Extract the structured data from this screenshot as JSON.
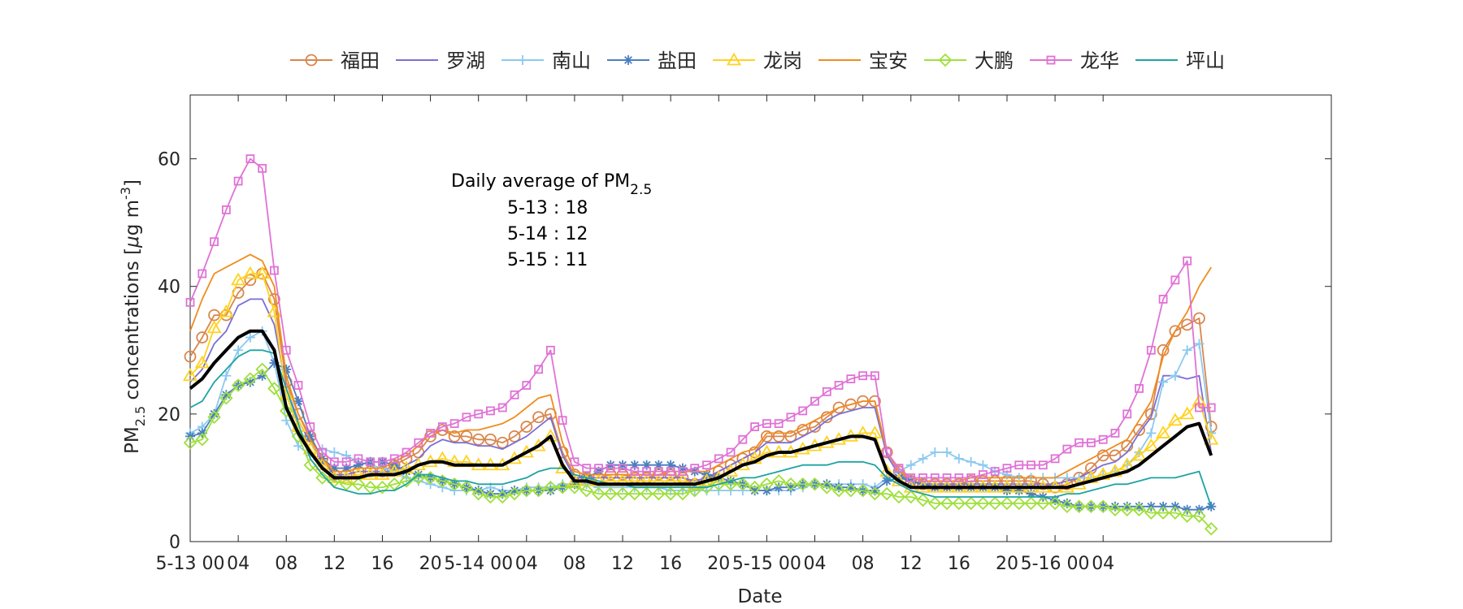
{
  "chart_data": {
    "type": "line",
    "xlabel": "Date",
    "ylabel": "PM2.5 concentrations [μg m-3]",
    "ylabel_parts": {
      "a": "PM",
      "sub": "2.5",
      "b": " concentrations [",
      "mu": "μ",
      "c": "g m",
      "sup": "-3",
      "d": "]"
    },
    "ylim": [
      0,
      70
    ],
    "xlim": [
      0,
      95
    ],
    "yticks": [
      0,
      20,
      40,
      60
    ],
    "xticks": [
      {
        "x": 0,
        "label": "5-13 00"
      },
      {
        "x": 4,
        "label": "04"
      },
      {
        "x": 8,
        "label": "08"
      },
      {
        "x": 12,
        "label": "12"
      },
      {
        "x": 16,
        "label": "16"
      },
      {
        "x": 20,
        "label": "20"
      },
      {
        "x": 24,
        "label": "5-14 00"
      },
      {
        "x": 28,
        "label": "04"
      },
      {
        "x": 32,
        "label": "08"
      },
      {
        "x": 36,
        "label": "12"
      },
      {
        "x": 40,
        "label": "16"
      },
      {
        "x": 44,
        "label": "20"
      },
      {
        "x": 48,
        "label": "5-15 00"
      },
      {
        "x": 52,
        "label": "04"
      },
      {
        "x": 56,
        "label": "08"
      },
      {
        "x": 60,
        "label": "12"
      },
      {
        "x": 64,
        "label": "16"
      },
      {
        "x": 68,
        "label": "20"
      },
      {
        "x": 72,
        "label": "5-16 00"
      },
      {
        "x": 76,
        "label": "04"
      }
    ],
    "annotation": {
      "title_main": "Daily average of PM",
      "title_sub": "2.5",
      "lines": [
        "5-13 : 18",
        "5-14 : 12",
        "5-15 : 11"
      ]
    },
    "legend_position": "top",
    "series": [
      {
        "name": "福田",
        "color": "#d9864c",
        "marker": "circle",
        "values": [
          29,
          32,
          35.5,
          35.5,
          39,
          41,
          42,
          38,
          25,
          20,
          16.5,
          13,
          10.5,
          10.5,
          11,
          11,
          11,
          12,
          13,
          14,
          16.5,
          17.5,
          16.5,
          16.5,
          16,
          16,
          15.5,
          16.5,
          18,
          19.5,
          20,
          14,
          10.5,
          10,
          10,
          10.5,
          10.5,
          10,
          10,
          10.5,
          10.5,
          10,
          9,
          9.5,
          11,
          12,
          13,
          14,
          16.5,
          16.5,
          16.5,
          17.5,
          18,
          19.5,
          21,
          21.5,
          22,
          22,
          14,
          11,
          9.5,
          9,
          9,
          9,
          9,
          9.5,
          9.5,
          9.5,
          9.5,
          9.5,
          9.5,
          9,
          8.5,
          9,
          10,
          11.5,
          13.5,
          13.5,
          15,
          17.5,
          20,
          30,
          33,
          34,
          35,
          18
        ]
      },
      {
        "name": "罗湖",
        "color": "#7b6fd6",
        "marker": "none",
        "values": [
          25,
          27,
          31,
          33,
          37,
          38,
          38,
          34,
          24,
          19,
          15.5,
          12.5,
          10.5,
          10.5,
          11,
          11,
          11,
          11,
          12,
          13,
          15,
          16,
          15.5,
          15.5,
          15,
          15,
          14.5,
          15.5,
          16.5,
          18,
          19.5,
          13.5,
          10,
          10,
          10,
          10,
          10,
          10,
          10,
          10,
          10,
          10,
          9.5,
          10,
          11,
          12,
          13,
          14,
          15.5,
          15.5,
          15.5,
          16.5,
          17.5,
          19,
          20,
          20.5,
          21,
          21,
          13.5,
          10.5,
          9.5,
          9,
          9,
          9,
          9,
          9,
          9,
          9,
          9,
          9,
          9,
          9,
          9,
          9.5,
          10,
          11,
          12,
          12.5,
          14,
          17,
          19.5,
          26,
          26,
          25.5,
          26,
          14
        ]
      },
      {
        "name": "南山",
        "color": "#8cc9f0",
        "marker": "plus",
        "values": [
          17,
          18,
          20,
          26,
          30,
          32,
          33,
          28,
          19,
          15,
          13.5,
          14.5,
          14,
          13.5,
          12.5,
          12,
          11.5,
          11,
          10,
          9.5,
          9,
          8.5,
          8,
          8,
          8,
          8.5,
          8,
          8,
          8.5,
          8.5,
          8.5,
          9,
          9,
          9,
          8.5,
          8.5,
          8.5,
          8.5,
          8.5,
          8.5,
          8,
          8,
          8,
          8,
          8,
          8,
          8,
          8,
          8,
          8,
          8,
          8.5,
          9,
          9,
          9,
          9,
          9,
          8.5,
          10,
          11,
          12,
          13,
          14,
          14,
          13,
          12.5,
          12,
          11,
          10.5,
          10,
          10,
          10,
          10,
          10,
          10,
          10,
          10.5,
          11,
          12,
          14,
          17,
          25,
          26,
          30,
          31,
          17
        ]
      },
      {
        "name": "盐田",
        "color": "#4a7fbf",
        "marker": "asterisk",
        "values": [
          16.5,
          17,
          20,
          23,
          24.5,
          25,
          26,
          28,
          27,
          22,
          16.5,
          13,
          11.5,
          11.5,
          12,
          12.5,
          12.5,
          12,
          11,
          10.5,
          10,
          9.5,
          9,
          8.5,
          8,
          7.5,
          7.5,
          8,
          8,
          8,
          8,
          8.5,
          9,
          10,
          11,
          12,
          12,
          12,
          12,
          12,
          12,
          11.5,
          11,
          10.5,
          10,
          9.5,
          9,
          8,
          8,
          8.5,
          8.5,
          9,
          9,
          9,
          8.5,
          8.5,
          8,
          8,
          9.5,
          10,
          9.5,
          9,
          8.5,
          8.5,
          8.5,
          8.5,
          8.5,
          8.5,
          8,
          8,
          7.5,
          7,
          6.5,
          6,
          5.5,
          5.5,
          5.5,
          5.5,
          5.5,
          5.5,
          5.5,
          5.5,
          5.5,
          5,
          5,
          5.5
        ]
      },
      {
        "name": "龙岗",
        "color": "#ffd21f",
        "marker": "triangle",
        "values": [
          26,
          28,
          33.5,
          36,
          41,
          42,
          42,
          36,
          23,
          18,
          14.5,
          12,
          10,
          10,
          10.5,
          10.5,
          10.5,
          11,
          11.5,
          12,
          12.5,
          13,
          12.5,
          12.5,
          12,
          12,
          12,
          13,
          14,
          15,
          16.5,
          11.5,
          9.5,
          9.5,
          9.5,
          9.5,
          9.5,
          9.5,
          9.5,
          9.5,
          9.5,
          9.5,
          9,
          9.5,
          10,
          11,
          12,
          13,
          14,
          14,
          14,
          14.5,
          15,
          15.5,
          16,
          16.5,
          17,
          17,
          11,
          9.5,
          8.5,
          8.5,
          8.5,
          8.5,
          8.5,
          8.5,
          8.5,
          8.5,
          8.5,
          8.5,
          8.5,
          8.5,
          8.5,
          8.5,
          9,
          10,
          10.5,
          11,
          12,
          13.5,
          15,
          17,
          19,
          20,
          22,
          16
        ]
      },
      {
        "name": "宝安",
        "color": "#f08c1e",
        "marker": "none",
        "values": [
          33,
          38,
          42,
          43,
          44,
          45,
          44,
          40,
          26,
          20,
          16,
          13,
          11,
          11,
          11.5,
          11.5,
          11.5,
          12.5,
          13.5,
          15,
          17,
          17.5,
          17,
          17.5,
          17.5,
          18,
          18.5,
          19.5,
          21,
          22.5,
          23,
          15.5,
          11,
          10.5,
          10.5,
          10.5,
          10.5,
          10.5,
          10.5,
          10.5,
          11,
          11,
          11,
          11,
          12,
          13,
          14,
          14.5,
          17,
          17,
          17,
          18,
          19,
          20,
          21,
          21.5,
          22,
          22,
          14,
          11,
          10,
          9.5,
          9.5,
          9.5,
          9.5,
          10,
          10,
          10,
          10,
          10,
          10,
          10,
          10,
          11,
          12,
          13,
          14,
          15,
          16,
          19,
          22,
          29,
          33,
          36,
          40,
          43
        ]
      },
      {
        "name": "大鹏",
        "color": "#9ee03a",
        "marker": "diamond",
        "values": [
          15.5,
          16,
          19.5,
          22.5,
          24.5,
          25.5,
          27,
          24,
          20.5,
          16.5,
          12,
          10,
          9.5,
          9,
          9,
          8.5,
          8.5,
          9,
          9.5,
          10,
          10,
          9.5,
          9,
          8.5,
          7.5,
          7,
          7,
          7.5,
          8,
          8,
          8.5,
          8.5,
          8.5,
          8,
          7.5,
          7.5,
          7.5,
          7.5,
          7.5,
          7.5,
          7.5,
          7.5,
          8,
          8.5,
          9,
          9,
          9,
          8.5,
          9,
          9.5,
          9,
          9,
          9,
          8.5,
          8,
          8,
          8,
          7.5,
          7.5,
          7,
          7,
          6.5,
          6,
          6,
          6,
          6,
          6,
          6,
          6,
          6,
          6,
          6,
          6,
          5.5,
          5.5,
          5.5,
          5.5,
          5,
          5,
          5,
          4.5,
          4.5,
          4.5,
          4,
          4,
          2
        ]
      },
      {
        "name": "龙华",
        "color": "#e072d6",
        "marker": "square",
        "values": [
          37.5,
          42,
          47,
          52,
          56.5,
          60,
          58.5,
          42.5,
          30,
          24.5,
          18,
          14,
          12.5,
          12.5,
          13,
          12.5,
          12.5,
          13,
          14,
          15.5,
          17,
          18,
          18.5,
          19.5,
          20,
          20.5,
          21,
          23,
          24.5,
          27,
          30,
          19,
          12.5,
          11.5,
          11.5,
          11.5,
          11.5,
          11,
          11,
          11,
          11,
          11,
          11.5,
          12,
          13,
          14,
          16,
          18,
          18.5,
          18.5,
          19.5,
          20.5,
          22,
          23.5,
          24.5,
          25.5,
          26,
          26,
          14,
          11.5,
          10,
          10,
          10,
          10,
          10,
          10,
          10.5,
          11,
          11.5,
          12,
          12,
          12,
          13,
          14.5,
          15.5,
          15.5,
          16,
          17,
          20,
          24,
          30,
          38,
          41,
          44,
          21,
          21
        ]
      },
      {
        "name": "坪山",
        "color": "#1fa3a3",
        "marker": "none",
        "values": [
          21,
          22,
          25,
          27,
          29,
          30,
          30,
          29.5,
          24,
          18.5,
          13,
          10.5,
          8.5,
          8,
          7.5,
          7.5,
          8,
          8,
          9,
          10.5,
          10.5,
          10,
          9.5,
          9.5,
          9,
          9,
          9,
          9.5,
          10,
          11,
          11.5,
          11.5,
          10.5,
          10,
          9.5,
          9,
          9,
          8.5,
          8.5,
          8.5,
          8.5,
          8.5,
          8.5,
          8.5,
          9,
          9.5,
          10,
          10,
          10.5,
          11,
          11.5,
          12,
          12,
          12,
          12.5,
          12.5,
          12.5,
          12,
          10,
          9,
          8,
          7.5,
          7,
          7,
          7,
          7,
          7,
          7,
          7,
          7,
          7,
          7,
          7,
          7.5,
          7.5,
          8,
          8.5,
          9,
          9,
          9.5,
          10,
          10,
          10,
          10.5,
          11,
          5.5
        ]
      },
      {
        "name": "",
        "color": "#000000",
        "marker": "none",
        "bold": true,
        "values": [
          24,
          25.5,
          28,
          30,
          32,
          33,
          33,
          30,
          21,
          17,
          14,
          11.5,
          10,
          10,
          10,
          10.5,
          10.5,
          10.5,
          11,
          12,
          12.5,
          12.5,
          12,
          12,
          12,
          12,
          12,
          13,
          14,
          15,
          16.5,
          12,
          9.5,
          9.5,
          9,
          9,
          9,
          9,
          9,
          9,
          9,
          9,
          9,
          9.5,
          10,
          11,
          12,
          12.5,
          13.5,
          14,
          14,
          14.5,
          15,
          15.5,
          16,
          16.5,
          16.5,
          16,
          11,
          9.5,
          8.5,
          8.5,
          8.5,
          8.5,
          8.5,
          8.5,
          8.5,
          8.5,
          8.5,
          8.5,
          8.5,
          8.5,
          8.5,
          8.5,
          9,
          9.5,
          10,
          10.5,
          11,
          12,
          13.5,
          15,
          16.5,
          18,
          18.5,
          13.5
        ]
      }
    ]
  }
}
